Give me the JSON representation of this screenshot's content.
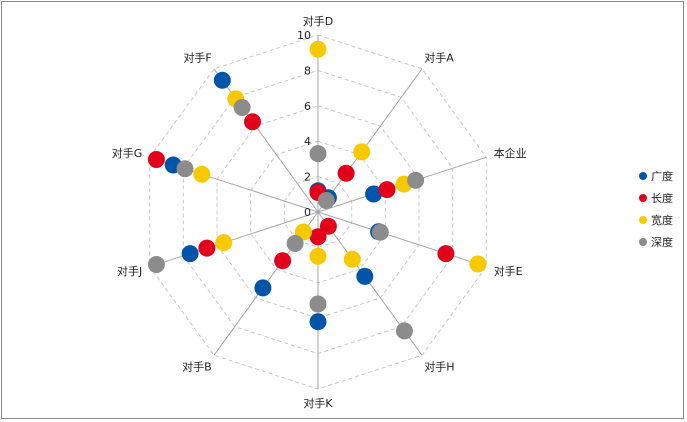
{
  "chart_data": {
    "type": "radar",
    "title": "",
    "categories": [
      "对手D",
      "对手A",
      "本企业",
      "对手E",
      "对手H",
      "对手K",
      "对手B",
      "对手J",
      "对手G",
      "对手F"
    ],
    "rmax": 10,
    "ticks": [
      "0",
      "2",
      "4",
      "6",
      "8",
      "10"
    ],
    "tick_values": [
      0,
      2,
      4,
      6,
      8,
      10
    ],
    "marker": "circle",
    "lines": false,
    "legend_position": "right",
    "series": [
      {
        "name": "广度",
        "color": "#0055a8",
        "values": [
          1.2,
          1.0,
          3.3,
          3.6,
          4.5,
          6.2,
          5.3,
          7.6,
          8.6,
          9.2
        ]
      },
      {
        "name": "长度",
        "color": "#e3001b",
        "values": [
          1.1,
          2.7,
          4.1,
          7.6,
          1.0,
          1.4,
          3.4,
          6.6,
          9.6,
          6.3
        ]
      },
      {
        "name": "宽度",
        "color": "#f7c900",
        "values": [
          9.2,
          4.2,
          5.1,
          9.5,
          3.3,
          2.5,
          1.4,
          5.6,
          6.9,
          7.9
        ]
      },
      {
        "name": "深度",
        "color": "#8c8c8c",
        "values": [
          3.3,
          0.8,
          5.8,
          3.7,
          8.3,
          5.2,
          2.2,
          9.6,
          7.9,
          7.3
        ]
      }
    ]
  }
}
